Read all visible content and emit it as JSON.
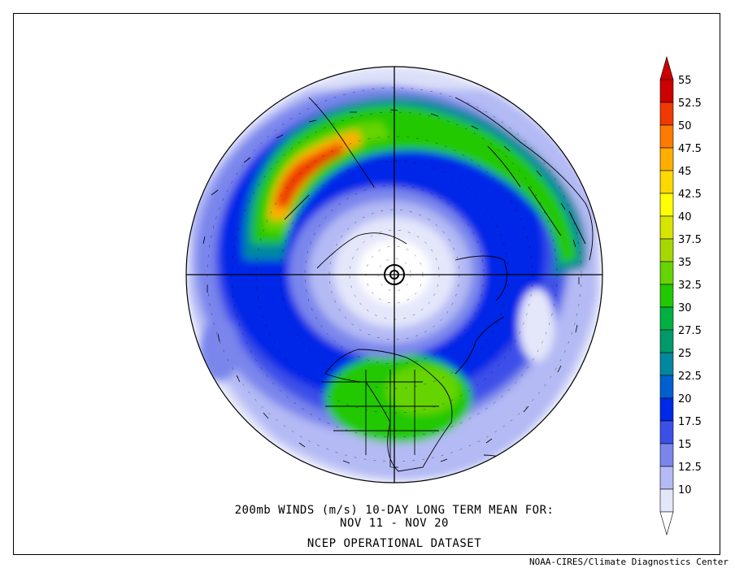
{
  "caption": {
    "line1": "200mb WINDS (m/s)   10-DAY LONG TERM MEAN FOR:",
    "line2": "NOV 11 - NOV 20",
    "line3": "NCEP OPERATIONAL DATASET"
  },
  "credit": "NOAA-CIRES/Climate Diagnostics Center",
  "colorbar": {
    "levels": [
      {
        "label": "55",
        "color": "#cc0000"
      },
      {
        "label": "52.5",
        "color": "#ee3a00"
      },
      {
        "label": "50",
        "color": "#ff7a00"
      },
      {
        "label": "47.5",
        "color": "#ffae00"
      },
      {
        "label": "45",
        "color": "#ffd800"
      },
      {
        "label": "42.5",
        "color": "#ffff00"
      },
      {
        "label": "40",
        "color": "#d6e400"
      },
      {
        "label": "37.5",
        "color": "#a6d800"
      },
      {
        "label": "35",
        "color": "#66d400"
      },
      {
        "label": "32.5",
        "color": "#22c800"
      },
      {
        "label": "30",
        "color": "#00b040"
      },
      {
        "label": "27.5",
        "color": "#009a6a"
      },
      {
        "label": "25",
        "color": "#0088a0"
      },
      {
        "label": "22.5",
        "color": "#0060d0"
      },
      {
        "label": "20",
        "color": "#0028e8"
      },
      {
        "label": "17.5",
        "color": "#3c50e8"
      },
      {
        "label": "15",
        "color": "#7a86ec"
      },
      {
        "label": "12.5",
        "color": "#b4baf4"
      },
      {
        "label": "10",
        "color": "#e4e6fa"
      }
    ]
  }
}
